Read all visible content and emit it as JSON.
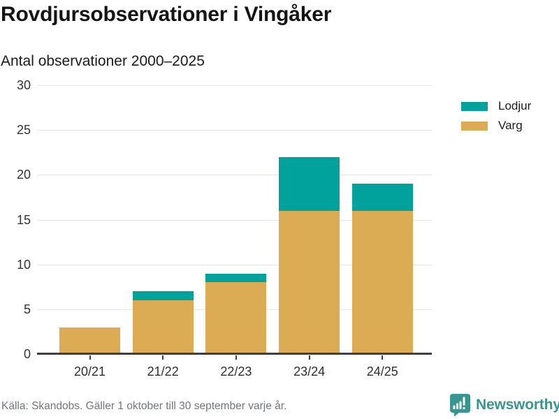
{
  "header": {
    "title": "Rovdjursobservationer i Vingåker",
    "subtitle": "Antal observationer 2000–2025"
  },
  "chart_data": {
    "type": "bar",
    "stacked": true,
    "title": "Rovdjursobservationer i Vingåker",
    "subtitle": "Antal observationer 2000–2025",
    "categories": [
      "20/21",
      "21/22",
      "22/23",
      "23/24",
      "24/25"
    ],
    "series": [
      {
        "name": "Lodjur",
        "color": "#00a29b",
        "values": [
          0,
          1,
          1,
          6,
          3
        ]
      },
      {
        "name": "Varg",
        "color": "#dcac55",
        "values": [
          3,
          6,
          8,
          16,
          16
        ]
      }
    ],
    "stack_order_bottom_to_top": [
      "Varg",
      "Lodjur"
    ],
    "totals": [
      3,
      7,
      9,
      22,
      19
    ],
    "xlabel": "",
    "ylabel": "",
    "ylim": [
      0,
      30
    ],
    "yticks": [
      0,
      5,
      10,
      15,
      20,
      25,
      30
    ],
    "grid": "horizontal-only",
    "legend_position": "top-right"
  },
  "legend": {
    "items": [
      {
        "label": "Lodjur",
        "color": "#00a29b"
      },
      {
        "label": "Varg",
        "color": "#dcac55"
      }
    ]
  },
  "footer": {
    "source": "Källa: Skandobs. Gäller 1 oktober till 30 september varje år.",
    "brand": "Newsworthy"
  },
  "colors": {
    "lodjur": "#00a29b",
    "varg": "#dcac55",
    "brand_teal": "#3a948f",
    "axis": "#3f3f3f",
    "gridline": "#e4e4e4",
    "muted_text": "#72757c"
  },
  "icons": {
    "brand_logo": "newsworthy-speech-bubble-bar-chart-icon"
  }
}
